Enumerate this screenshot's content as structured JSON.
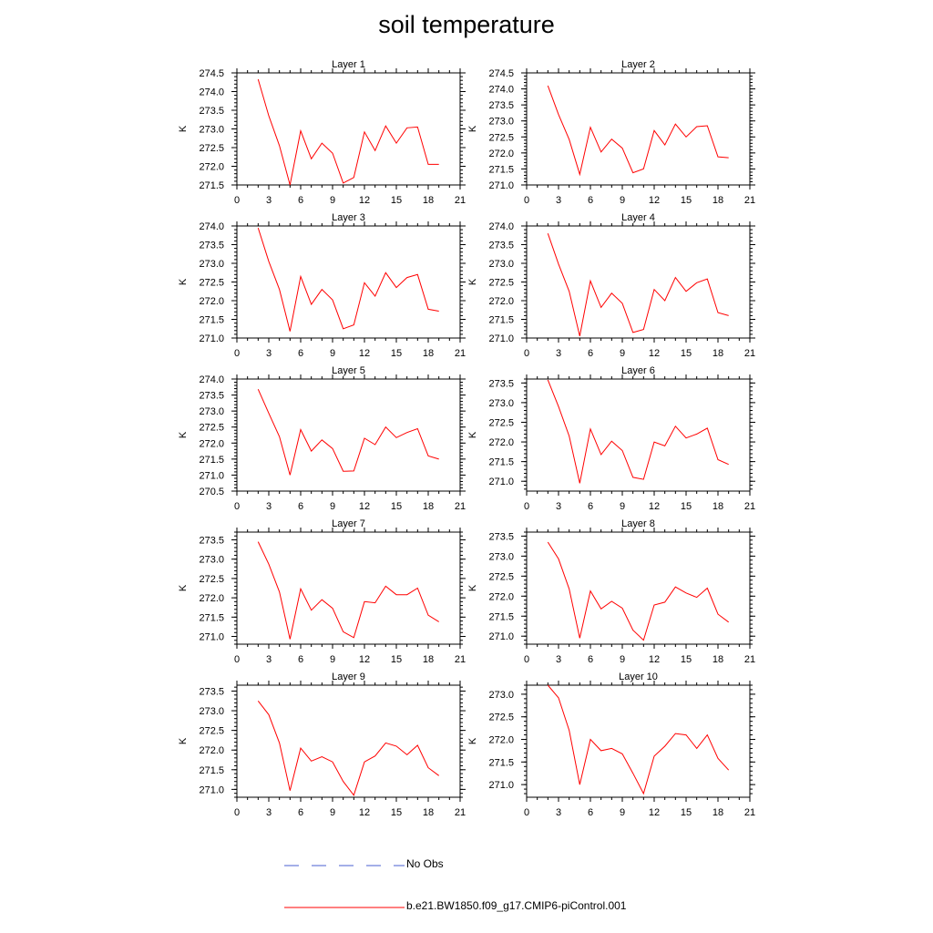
{
  "title": "soil temperature",
  "legend": [
    {
      "label": "No Obs",
      "color": "#4a5fd0",
      "style": "dashed"
    },
    {
      "label": "b.e21.BW1850.f09_g17.CMIP6-piControl.001",
      "color": "#ff0000",
      "style": "solid"
    }
  ],
  "chart_data": [
    {
      "type": "line",
      "title": "Layer 1",
      "ylabel": "K",
      "xlim": [
        0,
        21
      ],
      "xticks": [
        0,
        3,
        6,
        9,
        12,
        15,
        18,
        21
      ],
      "ylim": [
        271.5,
        274.5
      ],
      "yticks": [
        271.5,
        272.0,
        272.5,
        273.0,
        273.5,
        274.0,
        274.5
      ],
      "ytick_labels": [
        "271.5",
        "272.0",
        "272.5",
        "273.0",
        "273.5",
        "274.0",
        "274.5"
      ],
      "series": [
        {
          "color": "#ff0000",
          "x": [
            2,
            3,
            4,
            5,
            6,
            7,
            8,
            9,
            10,
            11,
            12,
            13,
            14,
            15,
            16,
            17,
            18,
            19
          ],
          "y": [
            274.33,
            273.35,
            272.55,
            271.5,
            272.95,
            272.2,
            272.62,
            272.35,
            271.55,
            271.7,
            272.92,
            272.42,
            273.08,
            272.62,
            273.03,
            273.05,
            272.05,
            272.05
          ]
        }
      ]
    },
    {
      "type": "line",
      "title": "Layer 2",
      "ylabel": "K",
      "xlim": [
        0,
        21
      ],
      "xticks": [
        0,
        3,
        6,
        9,
        12,
        15,
        18,
        21
      ],
      "ylim": [
        271.0,
        274.5
      ],
      "yticks": [
        271.0,
        271.5,
        272.0,
        272.5,
        273.0,
        273.5,
        274.0,
        274.5
      ],
      "ytick_labels": [
        "271.0",
        "271.5",
        "272.0",
        "272.5",
        "273.0",
        "273.5",
        "274.0",
        "274.5"
      ],
      "series": [
        {
          "color": "#ff0000",
          "x": [
            2,
            3,
            4,
            5,
            6,
            7,
            8,
            9,
            10,
            11,
            12,
            13,
            14,
            15,
            16,
            17,
            18,
            19
          ],
          "y": [
            274.1,
            273.2,
            272.42,
            271.33,
            272.8,
            272.03,
            272.43,
            272.15,
            271.38,
            271.5,
            272.7,
            272.25,
            272.9,
            272.5,
            272.82,
            272.85,
            271.88,
            271.85
          ]
        }
      ]
    },
    {
      "type": "line",
      "title": "Layer 3",
      "ylabel": "K",
      "xlim": [
        0,
        21
      ],
      "xticks": [
        0,
        3,
        6,
        9,
        12,
        15,
        18,
        21
      ],
      "ylim": [
        271.0,
        274.0
      ],
      "yticks": [
        271.0,
        271.5,
        272.0,
        272.5,
        273.0,
        273.5,
        274.0
      ],
      "ytick_labels": [
        "271.0",
        "271.5",
        "272.0",
        "272.5",
        "273.0",
        "273.5",
        "274.0"
      ],
      "series": [
        {
          "color": "#ff0000",
          "x": [
            2,
            3,
            4,
            5,
            6,
            7,
            8,
            9,
            10,
            11,
            12,
            13,
            14,
            15,
            16,
            17,
            18,
            19
          ],
          "y": [
            273.95,
            273.05,
            272.3,
            271.18,
            272.65,
            271.9,
            272.3,
            272.02,
            271.25,
            271.35,
            272.48,
            272.12,
            272.75,
            272.35,
            272.62,
            272.7,
            271.77,
            271.72
          ]
        }
      ]
    },
    {
      "type": "line",
      "title": "Layer 4",
      "ylabel": "K",
      "xlim": [
        0,
        21
      ],
      "xticks": [
        0,
        3,
        6,
        9,
        12,
        15,
        18,
        21
      ],
      "ylim": [
        271.0,
        274.0
      ],
      "yticks": [
        271.0,
        271.5,
        272.0,
        272.5,
        273.0,
        273.5,
        274.0
      ],
      "ytick_labels": [
        "271.0",
        "271.5",
        "272.0",
        "272.5",
        "273.0",
        "273.5",
        "274.0"
      ],
      "series": [
        {
          "color": "#ff0000",
          "x": [
            2,
            3,
            4,
            5,
            6,
            7,
            8,
            9,
            10,
            11,
            12,
            13,
            14,
            15,
            16,
            17,
            18,
            19
          ],
          "y": [
            273.8,
            272.98,
            272.25,
            271.05,
            272.53,
            271.82,
            272.2,
            271.93,
            271.15,
            271.23,
            272.3,
            272.0,
            272.62,
            272.25,
            272.48,
            272.58,
            271.68,
            271.6
          ]
        }
      ]
    },
    {
      "type": "line",
      "title": "Layer 5",
      "ylabel": "K",
      "xlim": [
        0,
        21
      ],
      "xticks": [
        0,
        3,
        6,
        9,
        12,
        15,
        18,
        21
      ],
      "ylim": [
        270.5,
        274.0
      ],
      "yticks": [
        270.5,
        271.0,
        271.5,
        272.0,
        272.5,
        273.0,
        273.5,
        274.0
      ],
      "ytick_labels": [
        "270.5",
        "271.0",
        "271.5",
        "272.0",
        "272.5",
        "273.0",
        "273.5",
        "274.0"
      ],
      "series": [
        {
          "color": "#ff0000",
          "x": [
            2,
            3,
            4,
            5,
            6,
            7,
            8,
            9,
            10,
            11,
            12,
            13,
            14,
            15,
            16,
            17,
            18,
            19
          ],
          "y": [
            273.68,
            272.93,
            272.2,
            271.0,
            272.42,
            271.75,
            272.1,
            271.83,
            271.12,
            271.13,
            272.15,
            271.95,
            272.5,
            272.17,
            272.33,
            272.45,
            271.6,
            271.5
          ]
        }
      ]
    },
    {
      "type": "line",
      "title": "Layer 6",
      "ylabel": "K",
      "xlim": [
        0,
        21
      ],
      "xticks": [
        0,
        3,
        6,
        9,
        12,
        15,
        18,
        21
      ],
      "ylim": [
        270.75,
        273.6
      ],
      "yticks": [
        271.0,
        271.5,
        272.0,
        272.5,
        273.0,
        273.5
      ],
      "ytick_labels": [
        "271.0",
        "271.5",
        "272.0",
        "272.5",
        "273.0",
        "273.5"
      ],
      "series": [
        {
          "color": "#ff0000",
          "x": [
            2,
            3,
            4,
            5,
            6,
            7,
            8,
            9,
            10,
            11,
            12,
            13,
            14,
            15,
            16,
            17,
            18,
            19
          ],
          "y": [
            273.58,
            272.9,
            272.15,
            270.95,
            272.33,
            271.68,
            272.02,
            271.78,
            271.1,
            271.05,
            272.0,
            271.9,
            272.4,
            272.1,
            272.2,
            272.35,
            271.55,
            271.43
          ]
        }
      ]
    },
    {
      "type": "line",
      "title": "Layer 7",
      "ylabel": "K",
      "xlim": [
        0,
        21
      ],
      "xticks": [
        0,
        3,
        6,
        9,
        12,
        15,
        18,
        21
      ],
      "ylim": [
        270.8,
        273.7
      ],
      "yticks": [
        271.0,
        271.5,
        272.0,
        272.5,
        273.0,
        273.5
      ],
      "ytick_labels": [
        "271.0",
        "271.5",
        "272.0",
        "272.5",
        "273.0",
        "273.5"
      ],
      "series": [
        {
          "color": "#ff0000",
          "x": [
            2,
            3,
            4,
            5,
            6,
            7,
            8,
            9,
            10,
            11,
            12,
            13,
            14,
            15,
            16,
            17,
            18,
            19
          ],
          "y": [
            273.45,
            272.87,
            272.15,
            270.93,
            272.23,
            271.68,
            271.95,
            271.73,
            271.12,
            270.97,
            271.9,
            271.87,
            272.3,
            272.08,
            272.08,
            272.25,
            271.55,
            271.38
          ]
        }
      ]
    },
    {
      "type": "line",
      "title": "Layer 8",
      "ylabel": "K",
      "xlim": [
        0,
        21
      ],
      "xticks": [
        0,
        3,
        6,
        9,
        12,
        15,
        18,
        21
      ],
      "ylim": [
        270.8,
        273.6
      ],
      "yticks": [
        271.0,
        271.5,
        272.0,
        272.5,
        273.0,
        273.5
      ],
      "ytick_labels": [
        "271.0",
        "271.5",
        "272.0",
        "272.5",
        "273.0",
        "273.5"
      ],
      "series": [
        {
          "color": "#ff0000",
          "x": [
            2,
            3,
            4,
            5,
            6,
            7,
            8,
            9,
            10,
            11,
            12,
            13,
            14,
            15,
            16,
            17,
            18,
            19
          ],
          "y": [
            273.35,
            272.93,
            272.18,
            270.95,
            272.13,
            271.68,
            271.87,
            271.7,
            271.15,
            270.9,
            271.78,
            271.85,
            272.23,
            272.08,
            271.97,
            272.2,
            271.55,
            271.35
          ]
        }
      ]
    },
    {
      "type": "line",
      "title": "Layer 9",
      "ylabel": "K",
      "xlim": [
        0,
        21
      ],
      "xticks": [
        0,
        3,
        6,
        9,
        12,
        15,
        18,
        21
      ],
      "ylim": [
        270.8,
        273.65
      ],
      "yticks": [
        271.0,
        271.5,
        272.0,
        272.5,
        273.0,
        273.5
      ],
      "ytick_labels": [
        "271.0",
        "271.5",
        "272.0",
        "272.5",
        "273.0",
        "273.5"
      ],
      "series": [
        {
          "color": "#ff0000",
          "x": [
            2,
            3,
            4,
            5,
            6,
            7,
            8,
            9,
            10,
            11,
            12,
            13,
            14,
            15,
            16,
            17,
            18,
            19
          ],
          "y": [
            273.25,
            272.9,
            272.18,
            270.97,
            272.05,
            271.72,
            271.83,
            271.7,
            271.2,
            270.85,
            271.7,
            271.85,
            272.18,
            272.1,
            271.88,
            272.12,
            271.55,
            271.35
          ]
        }
      ]
    },
    {
      "type": "line",
      "title": "Layer 10",
      "ylabel": "K",
      "xlim": [
        0,
        21
      ],
      "xticks": [
        0,
        3,
        6,
        9,
        12,
        15,
        18,
        21
      ],
      "ylim": [
        270.72,
        273.2
      ],
      "yticks": [
        271.0,
        271.5,
        272.0,
        272.5,
        273.0
      ],
      "ytick_labels": [
        "271.0",
        "271.5",
        "272.0",
        "272.5",
        "273.0"
      ],
      "series": [
        {
          "color": "#ff0000",
          "x": [
            2,
            3,
            4,
            5,
            6,
            7,
            8,
            9,
            10,
            11,
            12,
            13,
            14,
            15,
            16,
            17,
            18,
            19
          ],
          "y": [
            273.2,
            272.92,
            272.2,
            271.0,
            272.0,
            271.75,
            271.8,
            271.68,
            271.25,
            270.8,
            271.63,
            271.85,
            272.13,
            272.1,
            271.8,
            272.1,
            271.58,
            271.32
          ]
        }
      ]
    }
  ]
}
